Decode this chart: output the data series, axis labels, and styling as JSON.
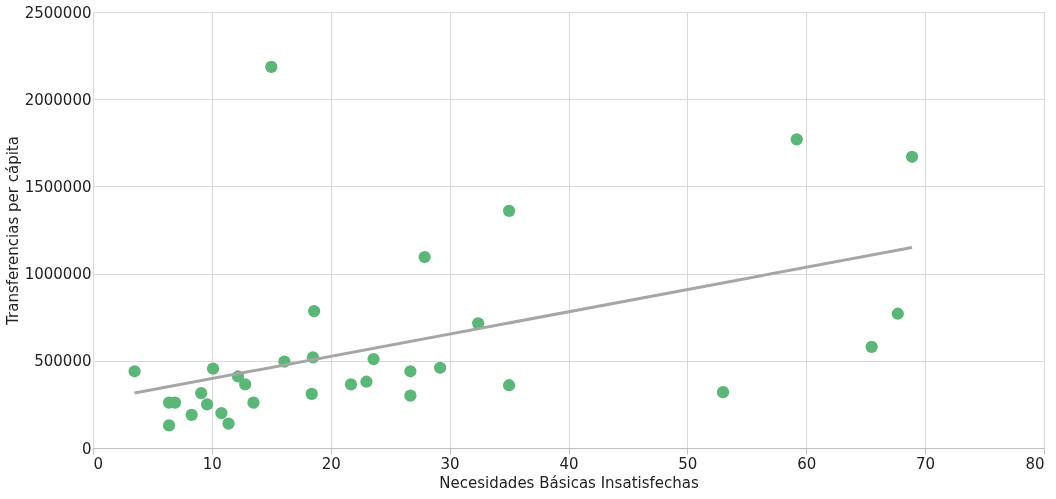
{
  "chart_data": {
    "type": "scatter",
    "xlabel": "Necesidades Básicas Insatisfechas",
    "ylabel": "Transferencias per cápita",
    "xlim": [
      0,
      80
    ],
    "xticks": [
      0,
      10,
      20,
      30,
      40,
      50,
      60,
      70,
      80
    ],
    "ylim": [
      0,
      2500000
    ],
    "yticks": [
      0,
      500000,
      1000000,
      1500000,
      2000000,
      2500000
    ],
    "grid": true,
    "marker": "circle",
    "series": [
      {
        "color": "#5bb777",
        "x": [
          3.5,
          6.4,
          6.9,
          6.4,
          8.3,
          9.1,
          9.6,
          10.1,
          10.8,
          11.4,
          12.2,
          12.8,
          13.5,
          15.0,
          16.1,
          18.4,
          18.5,
          18.6,
          21.7,
          23.0,
          23.6,
          26.7,
          26.7,
          27.9,
          29.2,
          32.4,
          35.0,
          35.0,
          53.0,
          59.2,
          65.5,
          67.7,
          68.9
        ],
        "values": [
          440000,
          260000,
          260000,
          130000,
          190000,
          315000,
          250000,
          455000,
          200000,
          140000,
          410000,
          365000,
          260000,
          2185000,
          495000,
          310000,
          520000,
          785000,
          365000,
          380000,
          510000,
          440000,
          300000,
          1095000,
          460000,
          715000,
          1360000,
          360000,
          320000,
          1770000,
          580000,
          770000,
          1670000
        ]
      },
      {
        "type": "line",
        "marker": "none",
        "line_style": "solid",
        "color": "#a6a6a6",
        "x": [
          3.5,
          68.9
        ],
        "values": [
          315000,
          1150000
        ]
      }
    ]
  }
}
